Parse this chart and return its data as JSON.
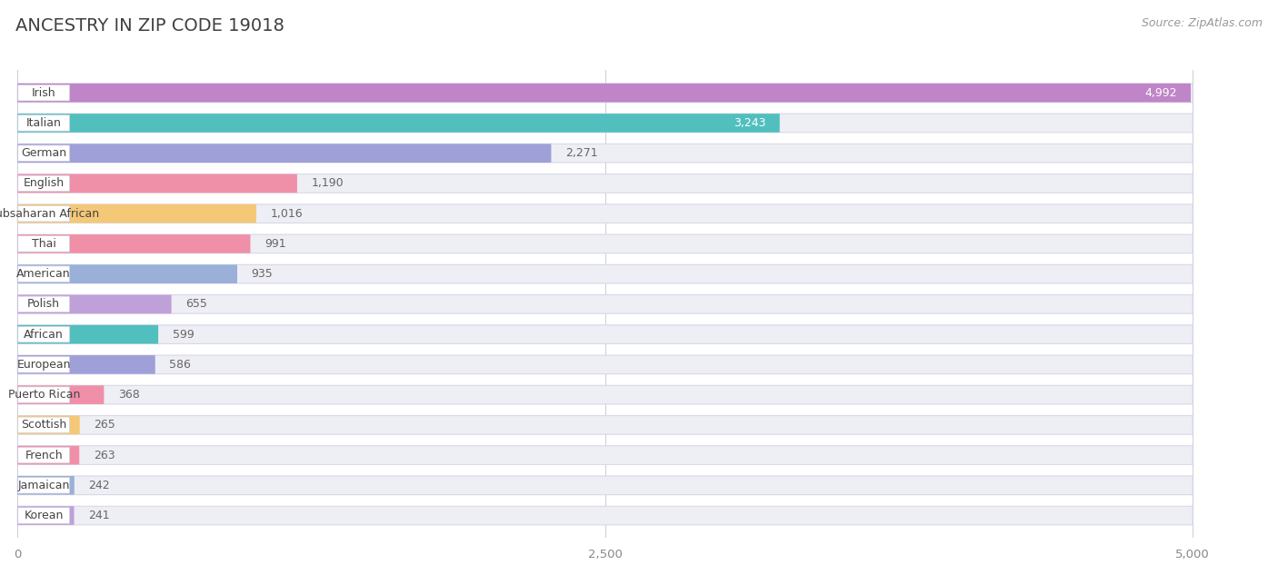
{
  "title": "ANCESTRY IN ZIP CODE 19018",
  "source": "Source: ZipAtlas.com",
  "categories": [
    "Irish",
    "Italian",
    "German",
    "English",
    "Subsaharan African",
    "Thai",
    "American",
    "Polish",
    "African",
    "European",
    "Puerto Rican",
    "Scottish",
    "French",
    "Jamaican",
    "Korean"
  ],
  "values": [
    4992,
    3243,
    2271,
    1190,
    1016,
    991,
    935,
    655,
    599,
    586,
    368,
    265,
    263,
    242,
    241
  ],
  "bar_colors": [
    "#bf85c8",
    "#52bfbf",
    "#a0a0d8",
    "#f090a8",
    "#f5c878",
    "#f090a8",
    "#9ab0d8",
    "#c0a0d8",
    "#52bfbf",
    "#a0a0d8",
    "#f090a8",
    "#f5c878",
    "#f090a8",
    "#9ab0d8",
    "#c0a0d8"
  ],
  "background_color": "#ffffff",
  "bar_bg_color": "#eeeef5",
  "bar_bg_border": "#d8d8e8",
  "xlim_max": 5000,
  "xtick_labels": [
    "0",
    "2,500",
    "5,000"
  ],
  "label_pill_color": "#ffffff",
  "value_color": "#666666",
  "title_color": "#404040",
  "source_color": "#999999"
}
